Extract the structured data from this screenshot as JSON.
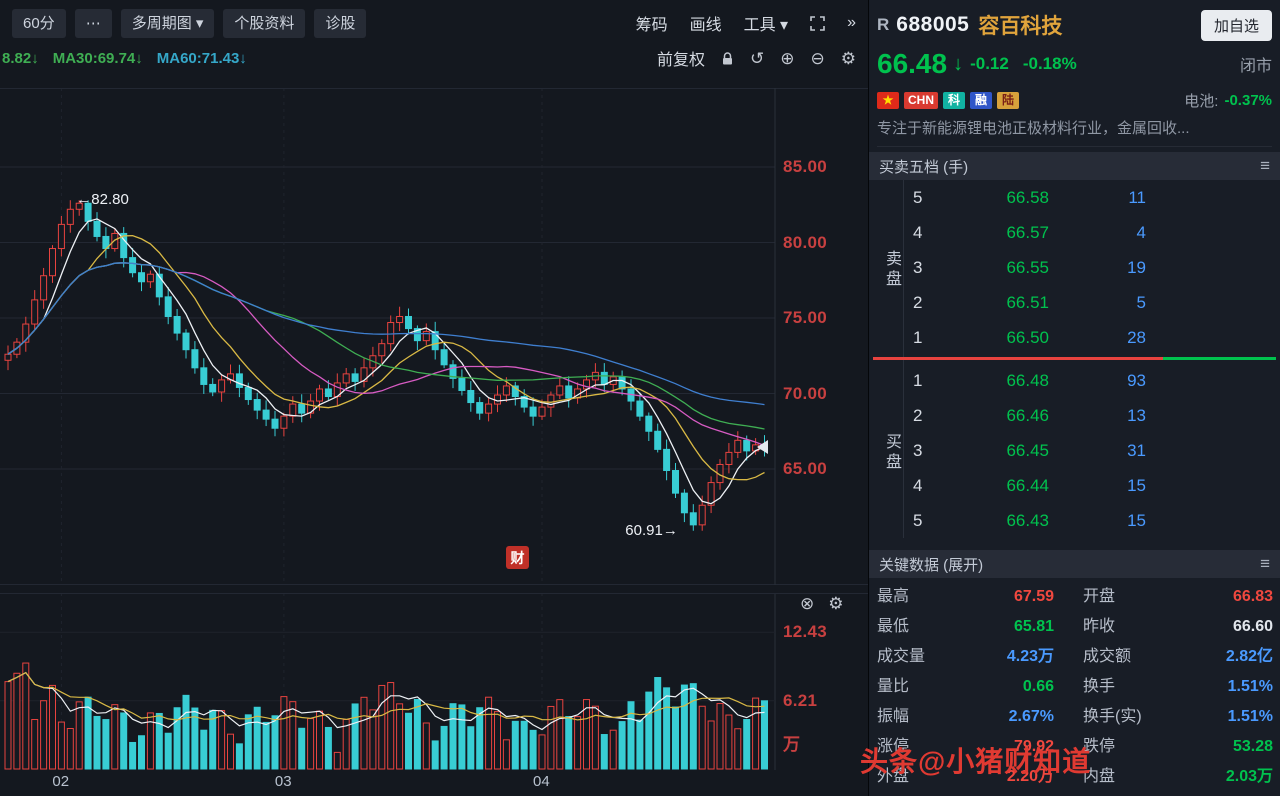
{
  "colors": {
    "up": "#e8433f",
    "cyan": "#38cdd4",
    "blue": "#4a9aff",
    "axis": "#c84040",
    "gold": "#e0a43c",
    "white": "#e2e6ec",
    "green_text": "#00c24e",
    "ma_white": "#eef1f5",
    "ma_yellow": "#d9b945",
    "ma_magenta": "#d75bc3",
    "ma_green": "#3fae53",
    "ma_blue": "#3f7fd0"
  },
  "icons": {
    "menu": "≡",
    "close": "⊗",
    "gear": "⚙",
    "zoom_in": "⊕",
    "zoom_out": "⊖",
    "undo": "↺",
    "chevrons": "»",
    "more": "⋯"
  },
  "toolbar": {
    "period_button": "60分",
    "multi_period_button": "多周期图 ▾",
    "stock_info_button": "个股资料",
    "diagnose_button": "诊股",
    "chips": "筹码",
    "drawing": "画线",
    "tools": "工具 ▾",
    "adjust_mode": "前复权"
  },
  "ma_labels": [
    {
      "text": "8.82↓",
      "color": "#3fae53"
    },
    {
      "text": "MA30:69.74↓",
      "color": "#3fae53"
    },
    {
      "text": "MA60:71.43↓",
      "color": "#35a7c8"
    }
  ],
  "chart": {
    "y_ticks": [
      {
        "label": "85.00",
        "value": 85
      },
      {
        "label": "80.00",
        "value": 80
      },
      {
        "label": "75.00",
        "value": 75
      },
      {
        "label": "70.00",
        "value": 70
      },
      {
        "label": "65.00",
        "value": 65
      }
    ],
    "x_ticks": [
      {
        "label": "02",
        "index": 6
      },
      {
        "label": "03",
        "index": 31
      },
      {
        "label": "04",
        "index": 60
      }
    ],
    "peak_label": "←82.80",
    "peak_value": 82.8,
    "low_label": "60.91→",
    "low_value": 60.91,
    "logo": "财",
    "closes": [
      72.6,
      73.4,
      74.6,
      76.2,
      77.8,
      79.6,
      81.2,
      82.2,
      82.6,
      81.4,
      80.4,
      79.6,
      80.6,
      79.0,
      78.0,
      77.4,
      77.9,
      76.4,
      75.1,
      74.0,
      72.9,
      71.7,
      70.6,
      70.1,
      70.9,
      71.3,
      70.4,
      69.6,
      68.9,
      68.3,
      67.7,
      68.5,
      69.3,
      68.7,
      69.5,
      70.3,
      69.8,
      70.7,
      71.3,
      70.8,
      71.7,
      72.5,
      73.3,
      74.7,
      75.1,
      74.3,
      73.5,
      74.1,
      72.9,
      71.9,
      71.0,
      70.2,
      69.4,
      68.7,
      69.3,
      69.9,
      70.5,
      69.8,
      69.1,
      68.5,
      69.1,
      69.9,
      70.5,
      69.7,
      70.3,
      70.9,
      71.4,
      70.6,
      71.1,
      70.3,
      69.5,
      68.5,
      67.5,
      66.3,
      64.9,
      63.4,
      62.1,
      61.3,
      62.6,
      64.1,
      65.3,
      66.1,
      66.9,
      66.2,
      66.6,
      66.48
    ]
  },
  "volume_pane": {
    "ticks": [
      {
        "label": "12.43",
        "value": 12.43
      },
      {
        "label": "6.21",
        "value": 6.21
      }
    ],
    "unit": "万"
  },
  "quote": {
    "marker": "R",
    "code": "688005",
    "name": "容百科技",
    "add_watchlist": "加自选",
    "price": "66.48",
    "arrow": "↓",
    "change": "-0.12",
    "change_pct": "-0.18%",
    "market_status": "闭市",
    "badges": [
      {
        "text": "★",
        "bg": "#de2a1a",
        "fg": "#ffde00",
        "name": "china-flag-badge"
      },
      {
        "text": "CHN",
        "bg": "#d93a30",
        "fg": "#ffffff",
        "name": "chn-badge"
      },
      {
        "text": "科",
        "bg": "#11b3a2",
        "fg": "#ffffff",
        "name": "star-market-badge"
      },
      {
        "text": "融",
        "bg": "#2f55c8",
        "fg": "#ffffff",
        "name": "margin-badge"
      },
      {
        "text": "陆",
        "bg": "#d7a13b",
        "fg": "#7a1f16",
        "name": "connect-badge"
      }
    ],
    "sector_label": "电池:",
    "sector_value": "-0.37%",
    "description": "专注于新能源锂电池正极材料行业，金属回收..."
  },
  "order_book": {
    "title": "买卖五档 (手)",
    "sell_label": "卖盘",
    "buy_label": "买盘",
    "sell": [
      {
        "level": "5",
        "price": "66.58",
        "vol": "11"
      },
      {
        "level": "4",
        "price": "66.57",
        "vol": "4"
      },
      {
        "level": "3",
        "price": "66.55",
        "vol": "19"
      },
      {
        "level": "2",
        "price": "66.51",
        "vol": "5"
      },
      {
        "level": "1",
        "price": "66.50",
        "vol": "28"
      }
    ],
    "buy": [
      {
        "level": "1",
        "price": "66.48",
        "vol": "93"
      },
      {
        "level": "2",
        "price": "66.46",
        "vol": "13"
      },
      {
        "level": "3",
        "price": "66.45",
        "vol": "31"
      },
      {
        "level": "4",
        "price": "66.44",
        "vol": "15"
      },
      {
        "level": "5",
        "price": "66.43",
        "vol": "15"
      }
    ]
  },
  "key_data": {
    "title": "关键数据 (展开)",
    "rows": [
      {
        "l1": "最高",
        "v1": "67.59",
        "c1": "#f0483f",
        "l2": "开盘",
        "v2": "66.83",
        "c2": "#f0483f"
      },
      {
        "l1": "最低",
        "v1": "65.81",
        "c1": "#00c24e",
        "l2": "昨收",
        "v2": "66.60",
        "c2": "#e2e6ec"
      },
      {
        "l1": "成交量",
        "v1": "4.23万",
        "c1": "#4a9aff",
        "l2": "成交额",
        "v2": "2.82亿",
        "c2": "#4a9aff"
      },
      {
        "l1": "量比",
        "v1": "0.66",
        "c1": "#00c24e",
        "l2": "换手",
        "v2": "1.51%",
        "c2": "#4a9aff"
      },
      {
        "l1": "振幅",
        "v1": "2.67%",
        "c1": "#4a9aff",
        "l2": "换手(实)",
        "v2": "1.51%",
        "c2": "#4a9aff"
      },
      {
        "l1": "涨停",
        "v1": "79.92",
        "c1": "#f0483f",
        "l2": "跌停",
        "v2": "53.28",
        "c2": "#00c24e"
      },
      {
        "l1": "外盘",
        "v1": "2.20万",
        "c1": "#f0483f",
        "l2": "内盘",
        "v2": "2.03万",
        "c2": "#00c24e"
      }
    ]
  },
  "watermark": "头条@小猪财知道"
}
